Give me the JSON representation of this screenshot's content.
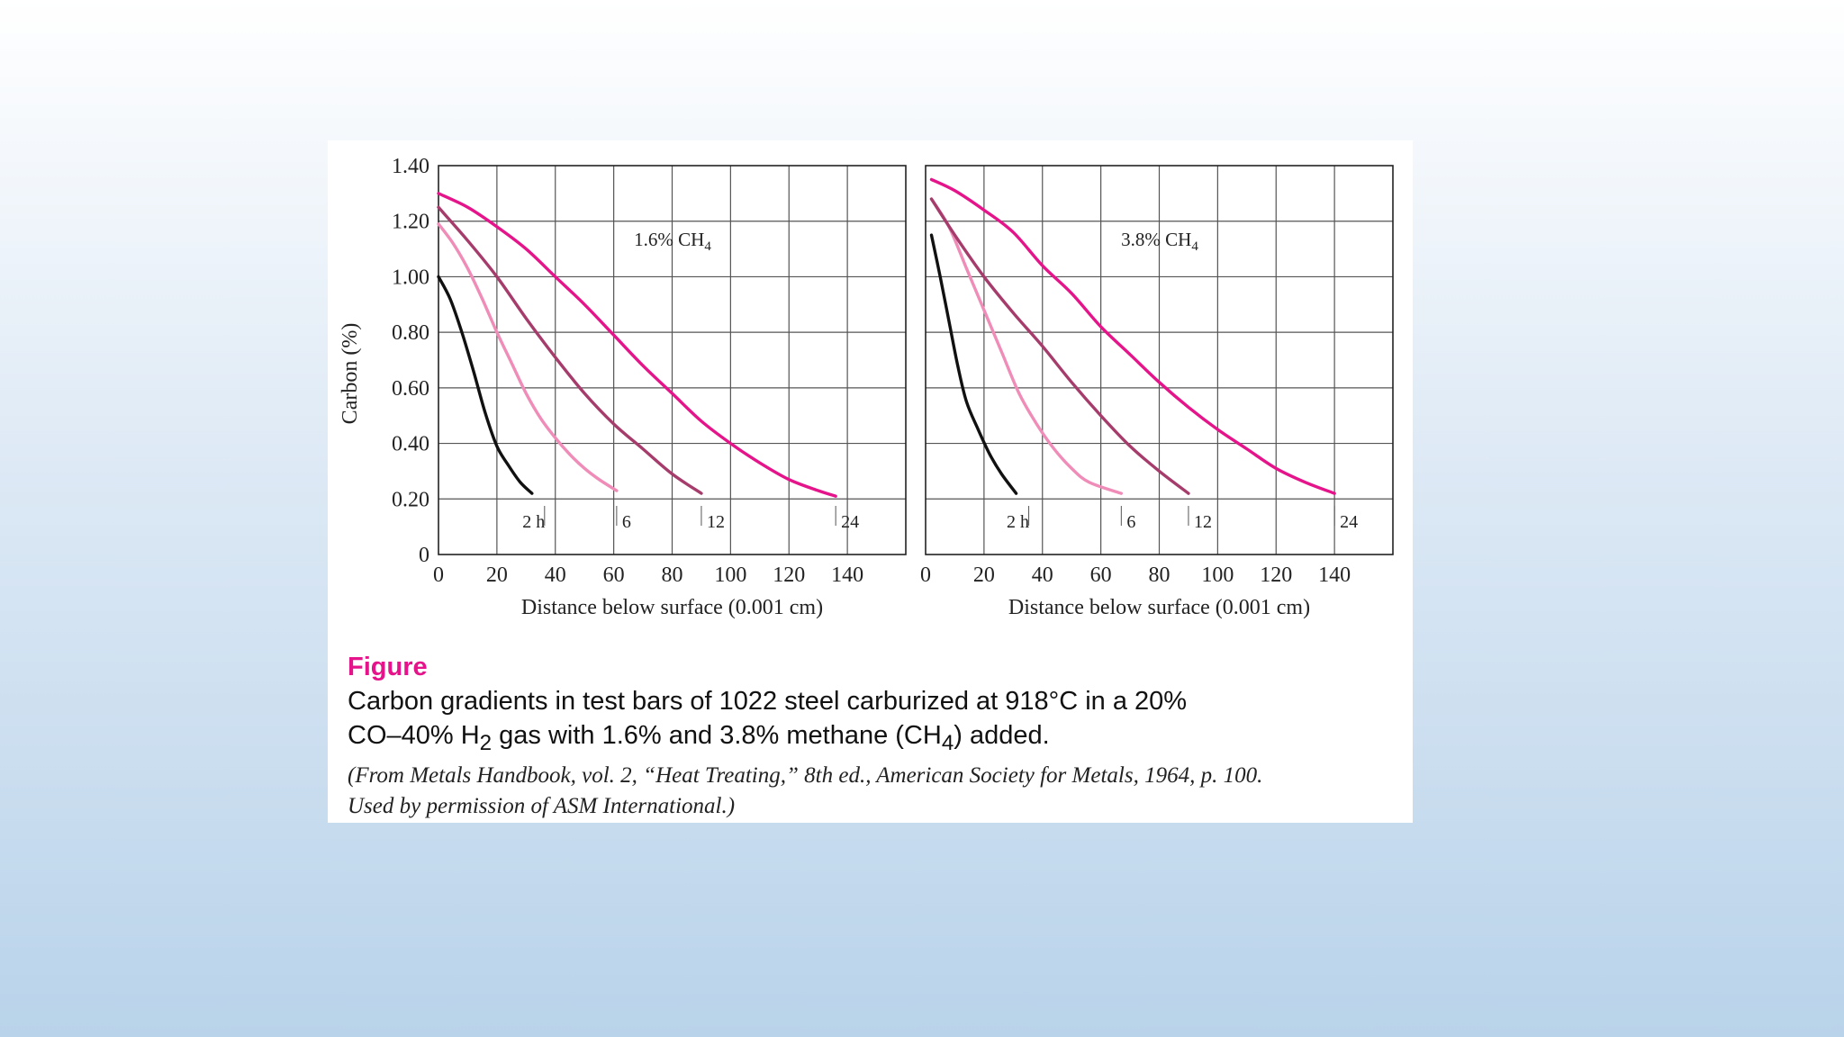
{
  "chart_data": [
    {
      "type": "line",
      "annotation": "1.6% CH",
      "annotation_sub": "4",
      "xlabel": "Distance below surface (0.001 cm)",
      "ylabel": "Carbon (%)",
      "xlim": [
        0,
        160
      ],
      "ylim": [
        0,
        1.4
      ],
      "x_ticks": [
        "0",
        "20",
        "40",
        "60",
        "80",
        "100",
        "120",
        "140"
      ],
      "y_ticks": [
        "0",
        "0.20",
        "0.40",
        "0.60",
        "0.80",
        "1.00",
        "1.20",
        "1.40"
      ],
      "grid": true,
      "series": [
        {
          "label": "2 h",
          "color": "#111111",
          "points": [
            [
              0,
              1.0
            ],
            [
              4,
              0.92
            ],
            [
              8,
              0.8
            ],
            [
              12,
              0.66
            ],
            [
              16,
              0.51
            ],
            [
              20,
              0.39
            ],
            [
              24,
              0.32
            ],
            [
              28,
              0.26
            ],
            [
              32,
              0.22
            ]
          ]
        },
        {
          "label": "6",
          "color": "#f08cb8",
          "points": [
            [
              0,
              1.19
            ],
            [
              5,
              1.12
            ],
            [
              10,
              1.03
            ],
            [
              15,
              0.92
            ],
            [
              20,
              0.8
            ],
            [
              25,
              0.69
            ],
            [
              30,
              0.58
            ],
            [
              35,
              0.49
            ],
            [
              40,
              0.42
            ],
            [
              45,
              0.36
            ],
            [
              50,
              0.31
            ],
            [
              55,
              0.27
            ],
            [
              61,
              0.23
            ]
          ]
        },
        {
          "label": "12",
          "color": "#a63c6b",
          "points": [
            [
              0,
              1.25
            ],
            [
              10,
              1.13
            ],
            [
              20,
              1.0
            ],
            [
              30,
              0.85
            ],
            [
              40,
              0.71
            ],
            [
              50,
              0.58
            ],
            [
              60,
              0.47
            ],
            [
              70,
              0.38
            ],
            [
              80,
              0.29
            ],
            [
              90,
              0.22
            ]
          ]
        },
        {
          "label": "24",
          "color": "#e6148a",
          "points": [
            [
              0,
              1.3
            ],
            [
              10,
              1.25
            ],
            [
              20,
              1.18
            ],
            [
              30,
              1.1
            ],
            [
              40,
              1.0
            ],
            [
              50,
              0.9
            ],
            [
              60,
              0.79
            ],
            [
              70,
              0.68
            ],
            [
              80,
              0.58
            ],
            [
              90,
              0.48
            ],
            [
              100,
              0.4
            ],
            [
              110,
              0.33
            ],
            [
              120,
              0.27
            ],
            [
              130,
              0.23
            ],
            [
              136,
              0.21
            ]
          ]
        }
      ]
    },
    {
      "type": "line",
      "annotation": "3.8% CH",
      "annotation_sub": "4",
      "xlabel": "Distance below surface (0.001 cm)",
      "xlim": [
        0,
        160
      ],
      "ylim": [
        0,
        1.4
      ],
      "x_ticks": [
        "0",
        "20",
        "40",
        "60",
        "80",
        "100",
        "120",
        "140"
      ],
      "grid": true,
      "series": [
        {
          "label": "2 h",
          "color": "#111111",
          "points": [
            [
              2,
              1.15
            ],
            [
              5,
              1.0
            ],
            [
              8,
              0.84
            ],
            [
              11,
              0.68
            ],
            [
              14,
              0.55
            ],
            [
              18,
              0.45
            ],
            [
              22,
              0.36
            ],
            [
              26,
              0.29
            ],
            [
              31,
              0.22
            ]
          ]
        },
        {
          "label": "6",
          "color": "#f08cb8",
          "points": [
            [
              2,
              1.28
            ],
            [
              8,
              1.18
            ],
            [
              14,
              1.03
            ],
            [
              20,
              0.88
            ],
            [
              26,
              0.73
            ],
            [
              32,
              0.58
            ],
            [
              38,
              0.47
            ],
            [
              44,
              0.38
            ],
            [
              50,
              0.31
            ],
            [
              56,
              0.26
            ],
            [
              67,
              0.22
            ]
          ]
        },
        {
          "label": "12",
          "color": "#a63c6b",
          "points": [
            [
              2,
              1.28
            ],
            [
              10,
              1.15
            ],
            [
              20,
              1.0
            ],
            [
              30,
              0.87
            ],
            [
              40,
              0.75
            ],
            [
              50,
              0.62
            ],
            [
              60,
              0.5
            ],
            [
              70,
              0.39
            ],
            [
              80,
              0.3
            ],
            [
              90,
              0.22
            ]
          ]
        },
        {
          "label": "24",
          "color": "#e6148a",
          "points": [
            [
              2,
              1.35
            ],
            [
              10,
              1.31
            ],
            [
              20,
              1.24
            ],
            [
              30,
              1.16
            ],
            [
              40,
              1.04
            ],
            [
              50,
              0.94
            ],
            [
              60,
              0.82
            ],
            [
              70,
              0.72
            ],
            [
              80,
              0.62
            ],
            [
              90,
              0.53
            ],
            [
              100,
              0.45
            ],
            [
              110,
              0.38
            ],
            [
              120,
              0.31
            ],
            [
              130,
              0.26
            ],
            [
              140,
              0.22
            ]
          ]
        }
      ]
    }
  ],
  "caption": {
    "label": "Figure",
    "line1": "Carbon gradients in test bars of 1022 steel carburized at 918°C in a 20%",
    "line2_a": "CO–40% H",
    "line2_sub1": "2",
    "line2_b": " gas with 1.6% and 3.8% methane (CH",
    "line2_sub2": "4",
    "line2_c": ") added.",
    "source1": "(From Metals Handbook, vol. 2, “Heat Treating,” 8th ed., American Society for Metals, 1964, p. 100.",
    "source2": "Used by permission of ASM International.)"
  }
}
